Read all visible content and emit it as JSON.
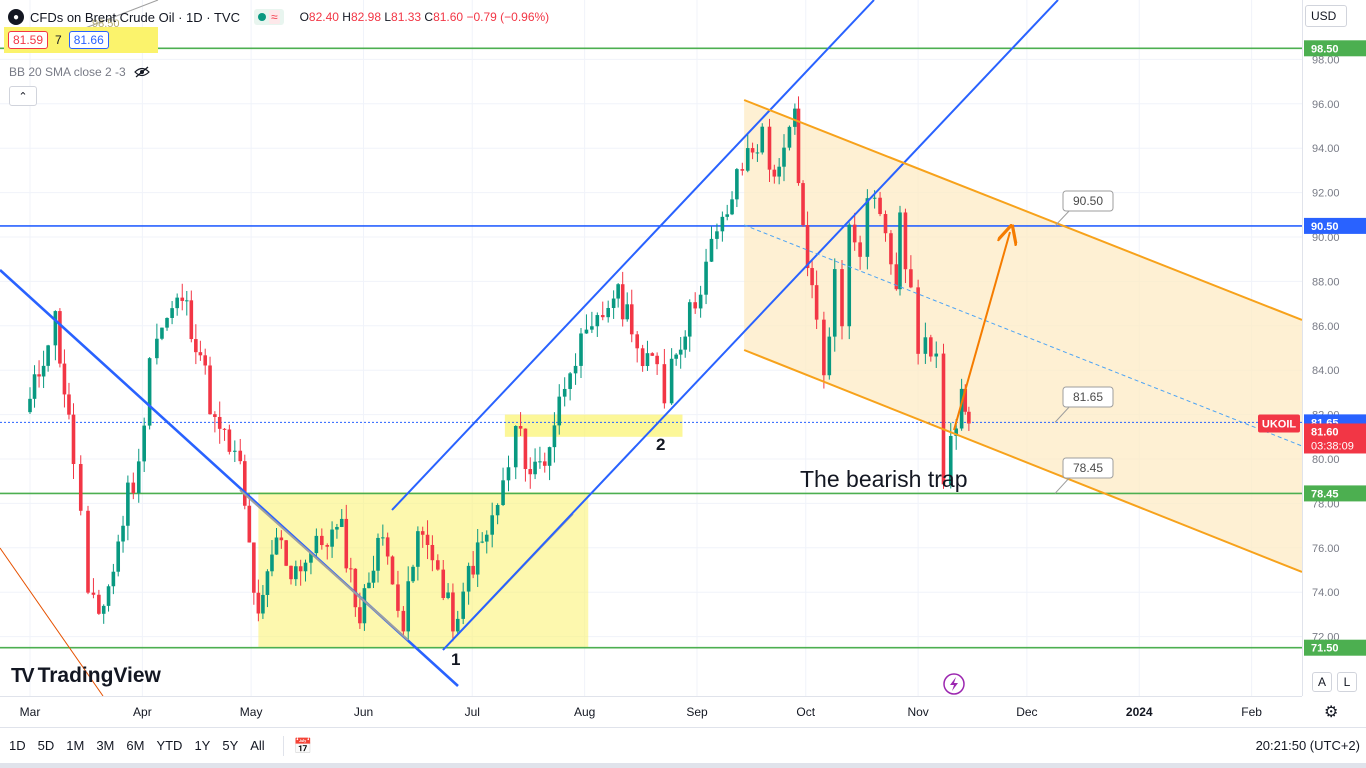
{
  "legend": {
    "symbol_icon": "flame-icon",
    "title": "CFDs on Brent Crude Oil · 1D · TVC",
    "status_icon": "market-closed-wave-icon",
    "open_label": "O",
    "open": "82.40",
    "high_label": "H",
    "high": "82.98",
    "low_label": "L",
    "low": "81.33",
    "close_label": "C",
    "close": "81.60",
    "change": "−0.79 (−0.96%)"
  },
  "bid_ask": {
    "sell": "81.59",
    "spread": "7",
    "buy": "81.66"
  },
  "indicator": {
    "label": "BB 20 SMA close 2 -3",
    "visibility_icon": "eye-crossed-icon"
  },
  "collapse_icon": "chevron-up-icon",
  "logo": {
    "name": "TradingView"
  },
  "currency": "USD",
  "scale_buttons": {
    "auto": "A",
    "log": "L"
  },
  "toolbar": {
    "ranges": [
      "1D",
      "5D",
      "1M",
      "3M",
      "6M",
      "YTD",
      "1Y",
      "5Y",
      "All"
    ],
    "goto_icon": "calendar-goto-icon",
    "clock": "20:21:50 (UTC+2)"
  },
  "settings_icon": "gear-icon",
  "colors": {
    "up": "#089981",
    "down": "#f23645",
    "blue": "#2962ff",
    "orange": "#f7a21b",
    "green": "#4caf50",
    "yellow": "#fbf36c"
  },
  "chart_data": {
    "type": "candlestick",
    "symbol": "UKOIL",
    "interval": "1D",
    "x_ticks": [
      "Mar",
      "Apr",
      "May",
      "Jun",
      "Jul",
      "Aug",
      "Sep",
      "Oct",
      "Nov",
      "Dec",
      "2024",
      "Feb"
    ],
    "y_ticks": [
      "72.00",
      "74.00",
      "76.00",
      "78.00",
      "80.00",
      "82.00",
      "84.00",
      "86.00",
      "88.00",
      "90.00",
      "92.00",
      "94.00",
      "96.00",
      "98.00"
    ],
    "ylim": [
      70,
      100
    ],
    "grid": true,
    "price_path": [
      [
        "Mar 1",
        82.5
      ],
      [
        "Mar 6",
        85.5
      ],
      [
        "Mar 8",
        86.3
      ],
      [
        "Mar 13",
        80.0
      ],
      [
        "Mar 15",
        77.5
      ],
      [
        "Mar 17",
        73.5
      ],
      [
        "Mar 20",
        73.0
      ],
      [
        "Mar 24",
        75.0
      ],
      [
        "Mar 28",
        78.5
      ],
      [
        "Mar 31",
        79.5
      ],
      [
        "Apr 3",
        84.8
      ],
      [
        "Apr 5",
        85.5
      ],
      [
        "Apr 12",
        87.3
      ],
      [
        "Apr 17",
        84.8
      ],
      [
        "Apr 21",
        81.5
      ],
      [
        "Apr 25",
        80.5
      ],
      [
        "Apr 28",
        79.5
      ],
      [
        "May 3",
        72.5
      ],
      [
        "May 8",
        76.5
      ],
      [
        "May 12",
        75.0
      ],
      [
        "May 16",
        75.5
      ],
      [
        "May 22",
        76.5
      ],
      [
        "May 26",
        76.7
      ],
      [
        "May 31",
        72.8
      ],
      [
        "Jun 5",
        76.5
      ],
      [
        "Jun 9",
        75.0
      ],
      [
        "Jun 12",
        72.5
      ],
      [
        "Jun 16",
        76.5
      ],
      [
        "Jun 20",
        76.0
      ],
      [
        "Jun 23",
        73.8
      ],
      [
        "Jun 27",
        72.3
      ],
      [
        "Jun 30",
        75.0
      ],
      [
        "Jul 5",
        76.5
      ],
      [
        "Jul 11",
        79.5
      ],
      [
        "Jul 13",
        81.4
      ],
      [
        "Jul 17",
        79.5
      ],
      [
        "Jul 21",
        80.0
      ],
      [
        "Jul 25",
        82.5
      ],
      [
        "Jul 28",
        84.5
      ],
      [
        "Aug 3",
        85.5
      ],
      [
        "Aug 9",
        87.5
      ],
      [
        "Aug 14",
        86.3
      ],
      [
        "Aug 17",
        84.0
      ],
      [
        "Aug 21",
        84.5
      ],
      [
        "Aug 23",
        83.0
      ],
      [
        "Aug 25",
        84.5
      ],
      [
        "Aug 30",
        86.5
      ],
      [
        "Sep 5",
        89.5
      ],
      [
        "Sep 8",
        90.5
      ],
      [
        "Sep 12",
        92.5
      ],
      [
        "Sep 15",
        93.8
      ],
      [
        "Sep 19",
        94.5
      ],
      [
        "Sep 21",
        93.0
      ],
      [
        "Sep 25",
        93.5
      ],
      [
        "Sep 28",
        95.5
      ],
      [
        "Sep 29",
        92.0
      ],
      [
        "Oct 4",
        86.0
      ],
      [
        "Oct 6",
        84.0
      ],
      [
        "Oct 9",
        88.2
      ],
      [
        "Oct 11",
        86.0
      ],
      [
        "Oct 13",
        90.9
      ],
      [
        "Oct 16",
        89.7
      ],
      [
        "Oct 18",
        91.5
      ],
      [
        "Oct 20",
        92.2
      ],
      [
        "Oct 23",
        89.8
      ],
      [
        "Oct 26",
        88.0
      ],
      [
        "Oct 27",
        90.5
      ],
      [
        "Oct 30",
        87.5
      ],
      [
        "Nov 1",
        84.6
      ],
      [
        "Nov 3",
        84.9
      ],
      [
        "Nov 6",
        85.2
      ],
      [
        "Nov 8",
        79.5
      ],
      [
        "Nov 10",
        81.4
      ],
      [
        "Nov 13",
        82.5
      ],
      [
        "Nov 14",
        82.5
      ],
      [
        "Nov 15",
        81.6
      ]
    ],
    "horizontal_levels": [
      {
        "price": 98.5,
        "label": "98.50",
        "color": "#4caf50"
      },
      {
        "price": 90.5,
        "label": "90.50",
        "color": "#2962ff"
      },
      {
        "price": 81.65,
        "label": "81.65",
        "color": "#2962ff"
      },
      {
        "price": 78.45,
        "label": "78.45",
        "color": "#4caf50"
      },
      {
        "price": 71.5,
        "label": "71.50",
        "color": "#4caf50"
      }
    ],
    "current_price": {
      "symbol": "UKOIL",
      "price": "81.60",
      "countdown": "03:38:09"
    },
    "callouts": [
      {
        "text": "90.50",
        "price": 90.5
      },
      {
        "text": "81.65",
        "price": 81.65
      },
      {
        "text": "78.45",
        "price": 78.45
      },
      {
        "text": "98.50",
        "price": 98.5
      }
    ],
    "annotations": [
      "The bearish trap",
      "1",
      "2"
    ],
    "patterns": [
      "descending orange price channel from mid-September",
      "rising blue channel from late June to late September",
      "blue descending trendline from March to late June",
      "yellow consolidation zone May–July",
      "projected move to the 90.50 level"
    ]
  }
}
